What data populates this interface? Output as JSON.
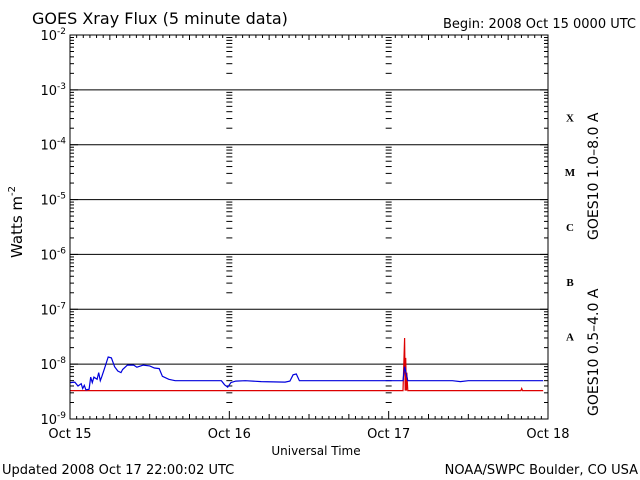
{
  "header": {
    "title": "GOES Xray Flux (5 minute data)",
    "begin": "Begin:  2008 Oct 15 0000 UTC"
  },
  "footer": {
    "updated": "Updated 2008 Oct 17 22:00:02 UTC",
    "credit": "NOAA/SWPC Boulder, CO USA"
  },
  "chart_data": {
    "type": "line",
    "title": "GOES Xray Flux (5 minute data)",
    "xlabel": "Universal Time",
    "ylabel_main": "Watts m",
    "ylabel_sup": "-2",
    "yscale": "log",
    "ylim": [
      1e-09,
      0.01
    ],
    "xlim_days": [
      0,
      3
    ],
    "x_ticks": [
      "Oct 15",
      "Oct 16",
      "Oct 17",
      "Oct 18"
    ],
    "y_ticks": [
      {
        "value": 0.01,
        "base": "10",
        "exp": "-2"
      },
      {
        "value": 0.001,
        "base": "10",
        "exp": "-3"
      },
      {
        "value": 0.0001,
        "base": "10",
        "exp": "-4"
      },
      {
        "value": 1e-05,
        "base": "10",
        "exp": "-5"
      },
      {
        "value": 1e-06,
        "base": "10",
        "exp": "-6"
      },
      {
        "value": 1e-07,
        "base": "10",
        "exp": "-7"
      },
      {
        "value": 1e-08,
        "base": "10",
        "exp": "-8"
      },
      {
        "value": 1e-09,
        "base": "10",
        "exp": "-9"
      }
    ],
    "grid": "horizontal at each decade",
    "flare_classes": [
      {
        "label": "X",
        "low": 0.0001,
        "high": 0.001
      },
      {
        "label": "M",
        "low": 1e-05,
        "high": 0.0001
      },
      {
        "label": "C",
        "low": 1e-06,
        "high": 1e-05
      },
      {
        "label": "B",
        "low": 1e-07,
        "high": 1e-06
      },
      {
        "label": "A",
        "low": 1e-08,
        "high": 1e-07
      }
    ],
    "series": [
      {
        "name": "GOES10 1.0–8.0 A",
        "color": "#dd0000",
        "points": [
          [
            0,
            3.3e-09
          ],
          [
            1.0,
            3.3e-09
          ],
          [
            2.0,
            3.3e-09
          ],
          [
            2.09,
            3.3e-09
          ],
          [
            2.1,
            3e-08
          ],
          [
            2.104,
            3.3e-09
          ],
          [
            2.107,
            1.3e-08
          ],
          [
            2.111,
            3.3e-09
          ],
          [
            2.114,
            7e-09
          ],
          [
            2.12,
            3.3e-09
          ],
          [
            2.5,
            3.3e-09
          ],
          [
            2.83,
            3.3e-09
          ],
          [
            2.835,
            3.6e-09
          ],
          [
            2.84,
            3.3e-09
          ],
          [
            2.97,
            3.3e-09
          ]
        ]
      },
      {
        "name": "GOES10 0.5–4.0 A",
        "color": "#0000dd",
        "points": [
          [
            0,
            4.6e-09
          ],
          [
            0.03,
            4.7e-09
          ],
          [
            0.05,
            4e-09
          ],
          [
            0.07,
            4.4e-09
          ],
          [
            0.08,
            3.6e-09
          ],
          [
            0.09,
            4.1e-09
          ],
          [
            0.1,
            3.4e-09
          ],
          [
            0.12,
            3.5e-09
          ],
          [
            0.13,
            5.8e-09
          ],
          [
            0.14,
            4.6e-09
          ],
          [
            0.15,
            5.8e-09
          ],
          [
            0.17,
            5.3e-09
          ],
          [
            0.18,
            7e-09
          ],
          [
            0.19,
            5e-09
          ],
          [
            0.2,
            6e-09
          ],
          [
            0.22,
            9e-09
          ],
          [
            0.23,
            1.1e-08
          ],
          [
            0.24,
            1.35e-08
          ],
          [
            0.26,
            1.3e-08
          ],
          [
            0.28,
            9e-09
          ],
          [
            0.3,
            7.5e-09
          ],
          [
            0.32,
            7e-09
          ],
          [
            0.33,
            8e-09
          ],
          [
            0.36,
            9.6e-09
          ],
          [
            0.4,
            9.6e-09
          ],
          [
            0.42,
            8.8e-09
          ],
          [
            0.46,
            9.6e-09
          ],
          [
            0.5,
            9.3e-09
          ],
          [
            0.53,
            8.5e-09
          ],
          [
            0.56,
            8.3e-09
          ],
          [
            0.58,
            6e-09
          ],
          [
            0.62,
            5.3e-09
          ],
          [
            0.66,
            5e-09
          ],
          [
            0.75,
            5e-09
          ],
          [
            0.95,
            5e-09
          ],
          [
            0.97,
            4.2e-09
          ],
          [
            0.99,
            3.8e-09
          ],
          [
            1.01,
            4.6e-09
          ],
          [
            1.04,
            4.9e-09
          ],
          [
            1.1,
            5e-09
          ],
          [
            1.2,
            4.8e-09
          ],
          [
            1.35,
            4.7e-09
          ],
          [
            1.38,
            4.9e-09
          ],
          [
            1.4,
            6.4e-09
          ],
          [
            1.42,
            6.6e-09
          ],
          [
            1.44,
            5e-09
          ],
          [
            1.48,
            5e-09
          ],
          [
            2.0,
            5e-09
          ],
          [
            2.09,
            5e-09
          ],
          [
            2.1,
            9e-09
          ],
          [
            2.12,
            5e-09
          ],
          [
            2.2,
            5e-09
          ],
          [
            2.3,
            5e-09
          ],
          [
            2.4,
            5e-09
          ],
          [
            2.45,
            4.8e-09
          ],
          [
            2.5,
            5e-09
          ],
          [
            2.7,
            5e-09
          ],
          [
            2.97,
            5e-09
          ]
        ]
      }
    ]
  }
}
